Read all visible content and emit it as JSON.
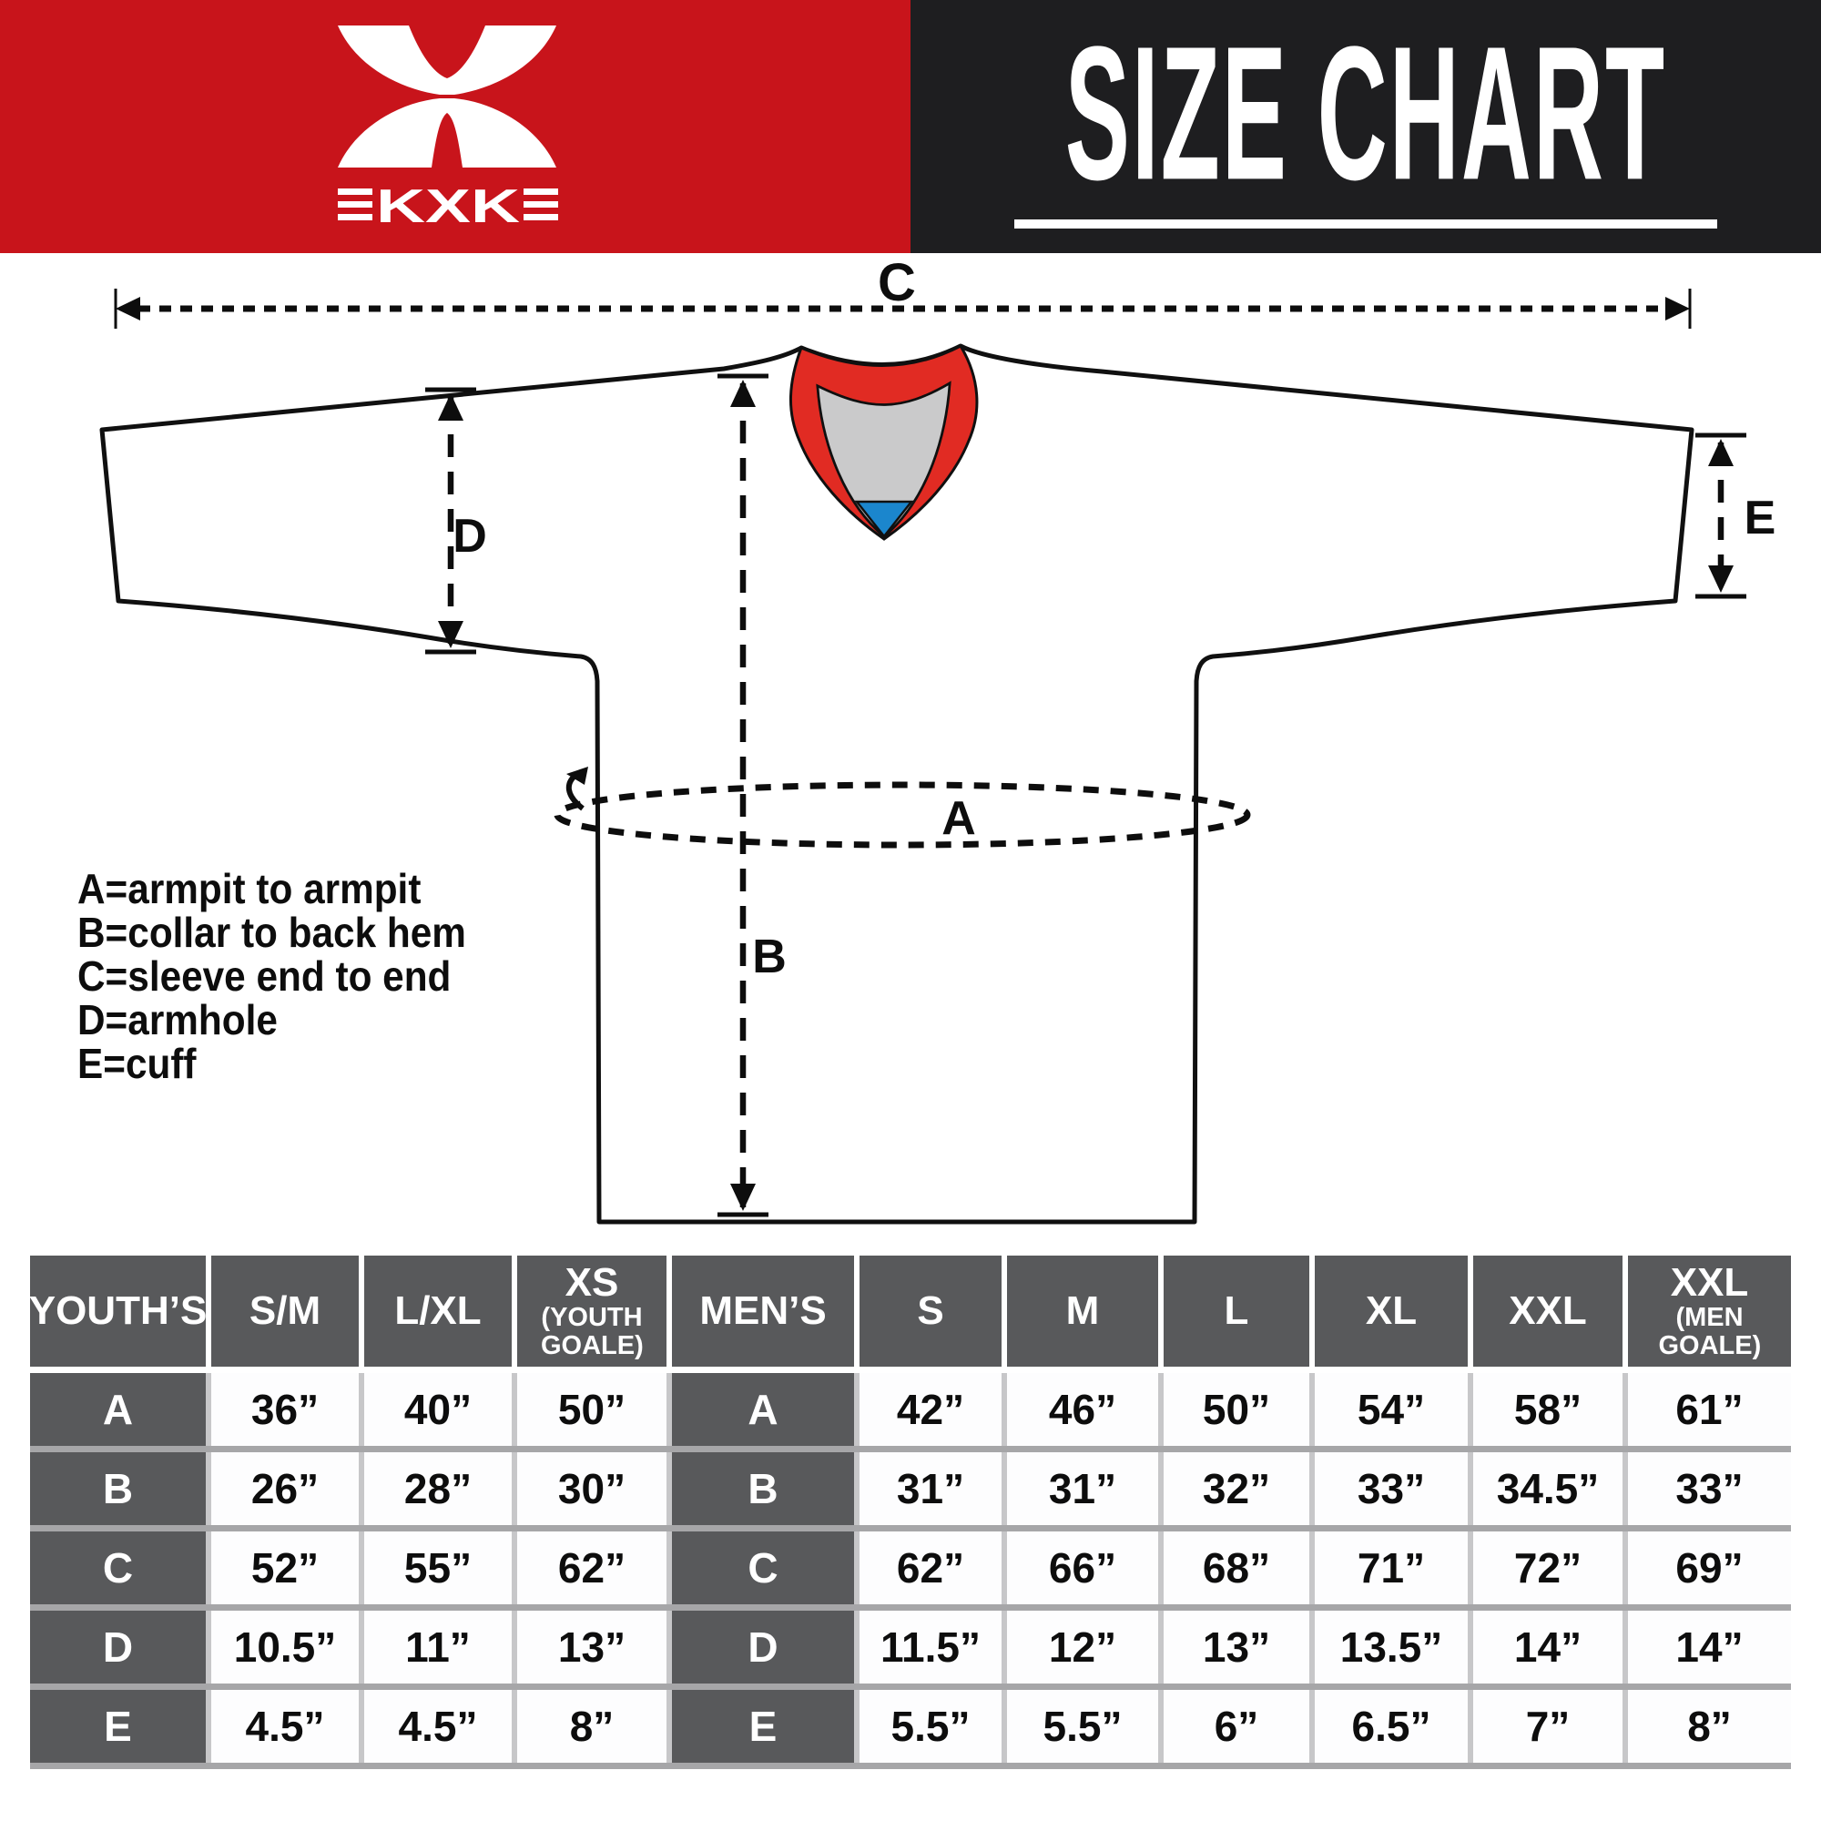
{
  "header": {
    "brand": "KXK",
    "title": "SIZE CHART"
  },
  "colors": {
    "brand_red": "#C8141B",
    "panel_black": "#1E1E20",
    "collar_red": "#E12B23",
    "collar_gray": "#CACACB",
    "collar_blue": "#1B86CD",
    "table_header_gray": "#58595B",
    "row_divider_gray": "#A6A6A8",
    "column_divider_gray": "#C7C7C9"
  },
  "diagram": {
    "measure_labels": {
      "a": "A",
      "b": "B",
      "c": "C",
      "d": "D",
      "e": "E"
    },
    "legend": [
      "A=armpit to armpit",
      "B=collar to back hem",
      "C=sleeve end to end",
      "D=armhole",
      "E=cuff"
    ]
  },
  "table": {
    "sections": [
      {
        "label": "YOUTH’S",
        "columns": [
          {
            "label": "S/M"
          },
          {
            "label": "L/XL"
          },
          {
            "label": "XS",
            "sub": "(YOUTH GOALE)"
          }
        ]
      },
      {
        "label": "MEN’S",
        "columns": [
          {
            "label": "S"
          },
          {
            "label": "M"
          },
          {
            "label": "L"
          },
          {
            "label": "XL"
          },
          {
            "label": "XXL"
          },
          {
            "label": "XXL",
            "sub": "(MEN GOALE)"
          }
        ]
      }
    ],
    "rows": [
      {
        "key": "A",
        "youth": [
          "36”",
          "40”",
          "50”"
        ],
        "mens": [
          "42”",
          "46”",
          "50”",
          "54”",
          "58”",
          "61”"
        ]
      },
      {
        "key": "B",
        "youth": [
          "26”",
          "28”",
          "30”"
        ],
        "mens": [
          "31”",
          "31”",
          "32”",
          "33”",
          "34.5”",
          "33”"
        ]
      },
      {
        "key": "C",
        "youth": [
          "52”",
          "55”",
          "62”"
        ],
        "mens": [
          "62”",
          "66”",
          "68”",
          "71”",
          "72”",
          "69”"
        ]
      },
      {
        "key": "D",
        "youth": [
          "10.5”",
          "11”",
          "13”"
        ],
        "mens": [
          "11.5”",
          "12”",
          "13”",
          "13.5”",
          "14”",
          "14”"
        ]
      },
      {
        "key": "E",
        "youth": [
          "4.5”",
          "4.5”",
          "8”"
        ],
        "mens": [
          "5.5”",
          "5.5”",
          "6”",
          "6.5”",
          "7”",
          "8”"
        ]
      }
    ]
  }
}
